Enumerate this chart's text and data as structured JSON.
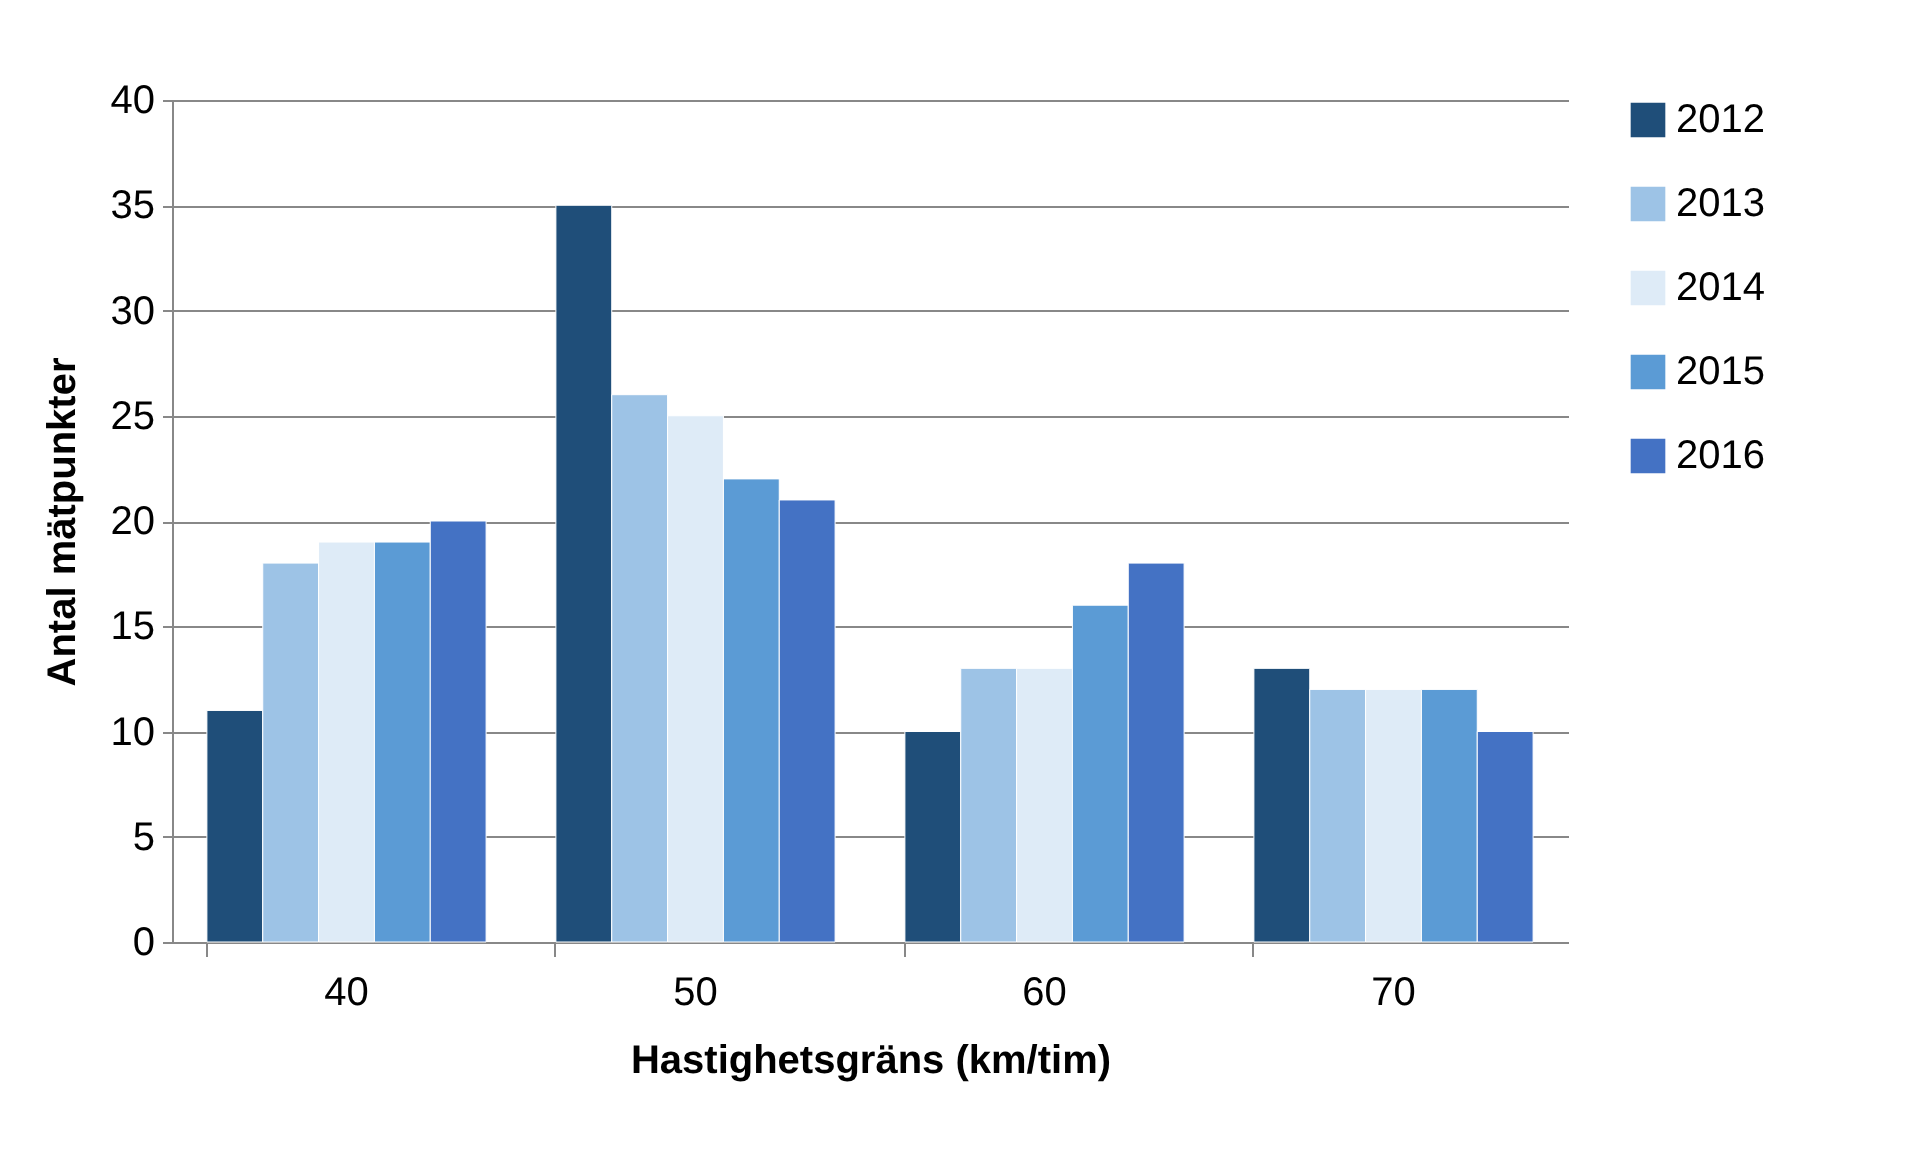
{
  "chart_data": {
    "type": "bar",
    "xlabel": "Hastighetsgräns (km/tim)",
    "ylabel": "Antal mätpunkter",
    "categories": [
      "40",
      "50",
      "60",
      "70"
    ],
    "series": [
      {
        "name": "2012",
        "color": "#1f4e79",
        "values": [
          11,
          35,
          10,
          13
        ]
      },
      {
        "name": "2013",
        "color": "#9dc3e6",
        "values": [
          18,
          26,
          13,
          12
        ]
      },
      {
        "name": "2014",
        "color": "#deebf7",
        "values": [
          19,
          25,
          13,
          12
        ]
      },
      {
        "name": "2015",
        "color": "#5b9bd5",
        "values": [
          19,
          22,
          16,
          12
        ]
      },
      {
        "name": "2016",
        "color": "#4472c4",
        "values": [
          20,
          21,
          18,
          10
        ]
      }
    ],
    "ylim": [
      0,
      40
    ],
    "yticks": [
      0,
      5,
      10,
      15,
      20,
      25,
      30,
      35,
      40
    ],
    "grid": "y",
    "legend": "right"
  }
}
